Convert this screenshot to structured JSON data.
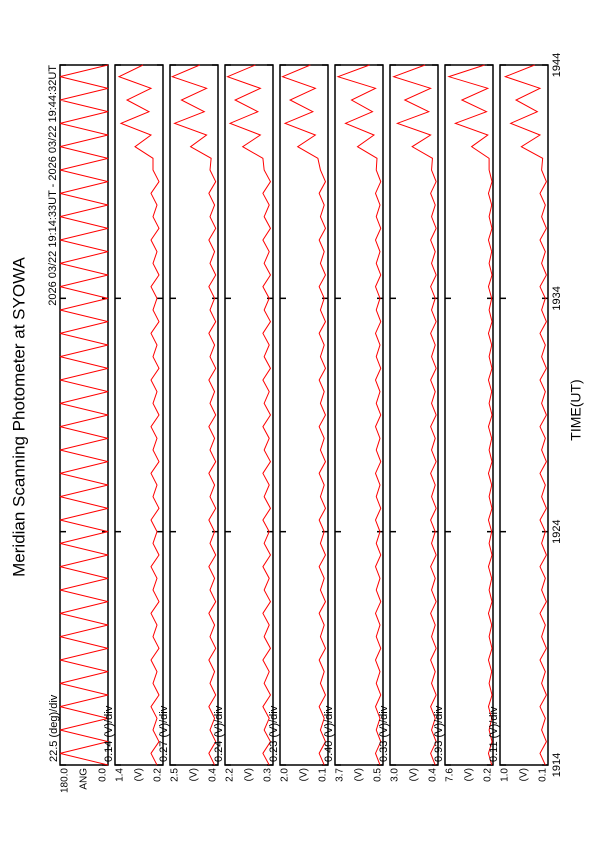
{
  "chart_data": {
    "type": "line",
    "title": "Meridian Scanning Photometer at SYOWA",
    "subtitle": "2026 03/22 19:14:33UT - 2026 03/22 19:44:32UT",
    "xlabel": "TIME(UT)",
    "xlim": [
      0,
      30
    ],
    "xticks": [
      {
        "value": 0,
        "label": "1914"
      },
      {
        "value": 10,
        "label": "1924"
      },
      {
        "value": 20,
        "label": "1934"
      },
      {
        "value": 30,
        "label": "1944"
      }
    ],
    "x": [
      0,
      0.5,
      1,
      1.5,
      2,
      2.5,
      3,
      3.5,
      4,
      4.5,
      5,
      5.5,
      6,
      6.5,
      7,
      7.5,
      8,
      8.5,
      9,
      9.5,
      10,
      10.5,
      11,
      11.5,
      12,
      12.5,
      13,
      13.5,
      14,
      14.5,
      15,
      15.5,
      16,
      16.5,
      17,
      17.5,
      18,
      18.5,
      19,
      19.5,
      20,
      20.5,
      21,
      21.5,
      22,
      22.5,
      23,
      23.5,
      24,
      24.5,
      25,
      25.5,
      26,
      26.5,
      27,
      27.5,
      28,
      28.5,
      29,
      29.5,
      30
    ],
    "panels": [
      {
        "scale": "22.5 (deg)/div",
        "unit": "ANG",
        "color": "#ff0000",
        "ylim": [
          0,
          180
        ],
        "yticks": [
          {
            "value": 180,
            "label": "180.0"
          },
          {
            "value": 0,
            "label": "0.0"
          }
        ],
        "values": [
          0,
          180,
          0,
          180,
          0,
          180,
          0,
          180,
          0,
          180,
          0,
          180,
          0,
          180,
          0,
          180,
          0,
          180,
          0,
          180,
          0,
          180,
          0,
          180,
          0,
          180,
          0,
          180,
          0,
          180,
          0,
          180,
          0,
          180,
          0,
          180,
          0,
          180,
          0,
          180,
          0,
          180,
          0,
          180,
          0,
          180,
          0,
          180,
          0,
          180,
          0,
          180,
          0,
          180,
          0,
          180,
          0,
          180,
          0,
          180,
          0
        ]
      },
      {
        "scale": "0.14 (V)/div",
        "unit": "(V)",
        "color": "#ff0000",
        "ylim": [
          0.2,
          1.4
        ],
        "yticks": [
          1.4,
          0.2
        ],
        "values": [
          0.35,
          0.5,
          0.3,
          0.45,
          0.35,
          0.5,
          0.3,
          0.45,
          0.35,
          0.5,
          0.3,
          0.45,
          0.35,
          0.5,
          0.3,
          0.45,
          0.35,
          0.5,
          0.3,
          0.45,
          0.35,
          0.5,
          0.3,
          0.45,
          0.35,
          0.5,
          0.3,
          0.45,
          0.35,
          0.5,
          0.3,
          0.45,
          0.35,
          0.5,
          0.3,
          0.45,
          0.35,
          0.5,
          0.3,
          0.45,
          0.35,
          0.5,
          0.3,
          0.45,
          0.35,
          0.5,
          0.3,
          0.45,
          0.35,
          0.5,
          0.3,
          0.45,
          0.45,
          0.9,
          0.5,
          1.25,
          0.55,
          1.1,
          0.5,
          1.3,
          0.7
        ]
      },
      {
        "scale": "0.27 (V)/div",
        "unit": "(V)",
        "color": "#ff0000",
        "ylim": [
          0.4,
          2.5
        ],
        "yticks": [
          2.5,
          0.4
        ],
        "values": [
          0.55,
          0.8,
          0.5,
          0.75,
          0.55,
          0.8,
          0.5,
          0.75,
          0.55,
          0.8,
          0.5,
          0.75,
          0.55,
          0.8,
          0.5,
          0.75,
          0.55,
          0.8,
          0.5,
          0.75,
          0.55,
          0.8,
          0.5,
          0.75,
          0.55,
          0.8,
          0.5,
          0.75,
          0.55,
          0.8,
          0.5,
          0.75,
          0.55,
          0.8,
          0.5,
          0.75,
          0.55,
          0.8,
          0.5,
          0.75,
          0.55,
          0.8,
          0.5,
          0.75,
          0.55,
          0.8,
          0.5,
          0.75,
          0.55,
          0.8,
          0.5,
          0.75,
          0.7,
          1.6,
          0.9,
          2.3,
          1.0,
          2.0,
          0.9,
          2.4,
          1.2
        ]
      },
      {
        "scale": "0.24 (V)/div",
        "unit": "(V)",
        "color": "#ff0000",
        "ylim": [
          0.3,
          2.2
        ],
        "yticks": [
          2.2,
          0.3
        ],
        "values": [
          0.45,
          0.7,
          0.4,
          0.65,
          0.45,
          0.7,
          0.4,
          0.65,
          0.45,
          0.7,
          0.4,
          0.65,
          0.45,
          0.7,
          0.4,
          0.65,
          0.45,
          0.7,
          0.4,
          0.65,
          0.45,
          0.7,
          0.4,
          0.65,
          0.45,
          0.7,
          0.4,
          0.65,
          0.45,
          0.7,
          0.4,
          0.65,
          0.45,
          0.7,
          0.4,
          0.65,
          0.45,
          0.7,
          0.4,
          0.65,
          0.45,
          0.7,
          0.4,
          0.65,
          0.45,
          0.7,
          0.4,
          0.65,
          0.45,
          0.7,
          0.4,
          0.65,
          0.7,
          1.5,
          0.8,
          2.0,
          0.9,
          1.8,
          0.8,
          2.1,
          1.0
        ]
      },
      {
        "scale": "0.23 (V)/div",
        "unit": "(V)",
        "color": "#ff0000",
        "ylim": [
          0.1,
          2
        ],
        "yticks": [
          {
            "value": 2,
            "label": "2.0"
          },
          0.1
        ],
        "values": [
          0.25,
          0.45,
          0.2,
          0.4,
          0.25,
          0.45,
          0.2,
          0.4,
          0.25,
          0.45,
          0.2,
          0.4,
          0.25,
          0.45,
          0.2,
          0.4,
          0.25,
          0.45,
          0.2,
          0.4,
          0.25,
          0.45,
          0.2,
          0.4,
          0.25,
          0.45,
          0.2,
          0.4,
          0.25,
          0.45,
          0.2,
          0.4,
          0.25,
          0.45,
          0.2,
          0.4,
          0.25,
          0.45,
          0.2,
          0.4,
          0.25,
          0.45,
          0.2,
          0.4,
          0.25,
          0.45,
          0.2,
          0.4,
          0.25,
          0.45,
          0.2,
          0.4,
          0.5,
          1.3,
          0.6,
          1.8,
          0.7,
          1.6,
          0.6,
          1.9,
          0.8
        ]
      },
      {
        "scale": "0.40 (V)/div",
        "unit": "(V)",
        "color": "#ff0000",
        "ylim": [
          0.5,
          3.7
        ],
        "yticks": [
          3.7,
          0.5
        ],
        "values": [
          0.7,
          1.0,
          0.65,
          0.95,
          0.7,
          1.0,
          0.65,
          0.95,
          0.7,
          1.0,
          0.65,
          0.95,
          0.7,
          1.0,
          0.65,
          0.95,
          0.7,
          1.0,
          0.65,
          0.95,
          0.7,
          1.0,
          0.65,
          0.95,
          0.7,
          1.0,
          0.65,
          0.95,
          0.7,
          1.0,
          0.65,
          0.95,
          0.7,
          1.0,
          0.65,
          0.95,
          0.7,
          1.0,
          0.65,
          0.95,
          0.7,
          1.0,
          0.65,
          0.95,
          0.7,
          1.0,
          0.65,
          0.95,
          0.7,
          1.0,
          0.65,
          0.95,
          0.9,
          2.2,
          1.1,
          3.0,
          1.2,
          2.6,
          1.0,
          3.5,
          1.4
        ]
      },
      {
        "scale": "0.33 (V)/div",
        "unit": "(V)",
        "color": "#ff0000",
        "ylim": [
          0.4,
          3
        ],
        "yticks": [
          {
            "value": 3,
            "label": "3.0"
          },
          0.4
        ],
        "values": [
          0.55,
          0.8,
          0.5,
          0.75,
          0.55,
          0.8,
          0.5,
          0.75,
          0.55,
          0.8,
          0.5,
          0.75,
          0.55,
          0.8,
          0.5,
          0.75,
          0.55,
          0.8,
          0.5,
          0.75,
          0.55,
          0.8,
          0.5,
          0.75,
          0.55,
          0.8,
          0.5,
          0.75,
          0.55,
          0.8,
          0.5,
          0.75,
          0.55,
          0.8,
          0.5,
          0.75,
          0.55,
          0.8,
          0.5,
          0.75,
          0.55,
          0.8,
          0.5,
          0.75,
          0.55,
          0.8,
          0.5,
          0.75,
          0.55,
          0.8,
          0.5,
          0.75,
          0.7,
          1.8,
          0.8,
          2.6,
          0.9,
          2.2,
          0.8,
          2.8,
          1.1
        ]
      },
      {
        "scale": "0.93 (V)/div",
        "unit": "(V)",
        "color": "#ff0000",
        "ylim": [
          0.2,
          7.6
        ],
        "yticks": [
          7.6,
          0.2
        ],
        "values": [
          0.4,
          0.9,
          0.35,
          0.8,
          0.4,
          0.9,
          0.35,
          0.8,
          0.4,
          0.9,
          0.35,
          0.8,
          0.4,
          0.9,
          0.35,
          0.8,
          0.4,
          0.9,
          0.35,
          0.8,
          0.4,
          0.9,
          0.35,
          0.8,
          0.4,
          0.9,
          0.35,
          0.8,
          0.4,
          0.9,
          0.35,
          0.8,
          0.4,
          0.9,
          0.35,
          0.8,
          0.4,
          0.9,
          0.35,
          0.8,
          0.4,
          0.9,
          0.35,
          0.8,
          0.4,
          0.9,
          0.35,
          0.8,
          0.4,
          0.9,
          0.35,
          0.8,
          0.8,
          3.5,
          1.0,
          6.0,
          1.2,
          5.0,
          1.0,
          7.0,
          1.5
        ]
      },
      {
        "scale": "0.11 (V)/div",
        "unit": "(V)",
        "color": "#ff0000",
        "ylim": [
          0.1,
          1
        ],
        "yticks": [
          {
            "value": 1,
            "label": "1.0"
          },
          0.1
        ],
        "values": [
          0.15,
          0.25,
          0.13,
          0.22,
          0.15,
          0.25,
          0.13,
          0.22,
          0.15,
          0.25,
          0.13,
          0.22,
          0.15,
          0.25,
          0.13,
          0.22,
          0.15,
          0.25,
          0.13,
          0.22,
          0.15,
          0.25,
          0.13,
          0.22,
          0.15,
          0.25,
          0.13,
          0.22,
          0.15,
          0.25,
          0.13,
          0.22,
          0.15,
          0.25,
          0.13,
          0.22,
          0.15,
          0.25,
          0.13,
          0.22,
          0.15,
          0.25,
          0.13,
          0.22,
          0.15,
          0.25,
          0.13,
          0.22,
          0.15,
          0.25,
          0.13,
          0.22,
          0.2,
          0.6,
          0.25,
          0.8,
          0.3,
          0.7,
          0.25,
          0.9,
          0.35
        ]
      }
    ]
  }
}
